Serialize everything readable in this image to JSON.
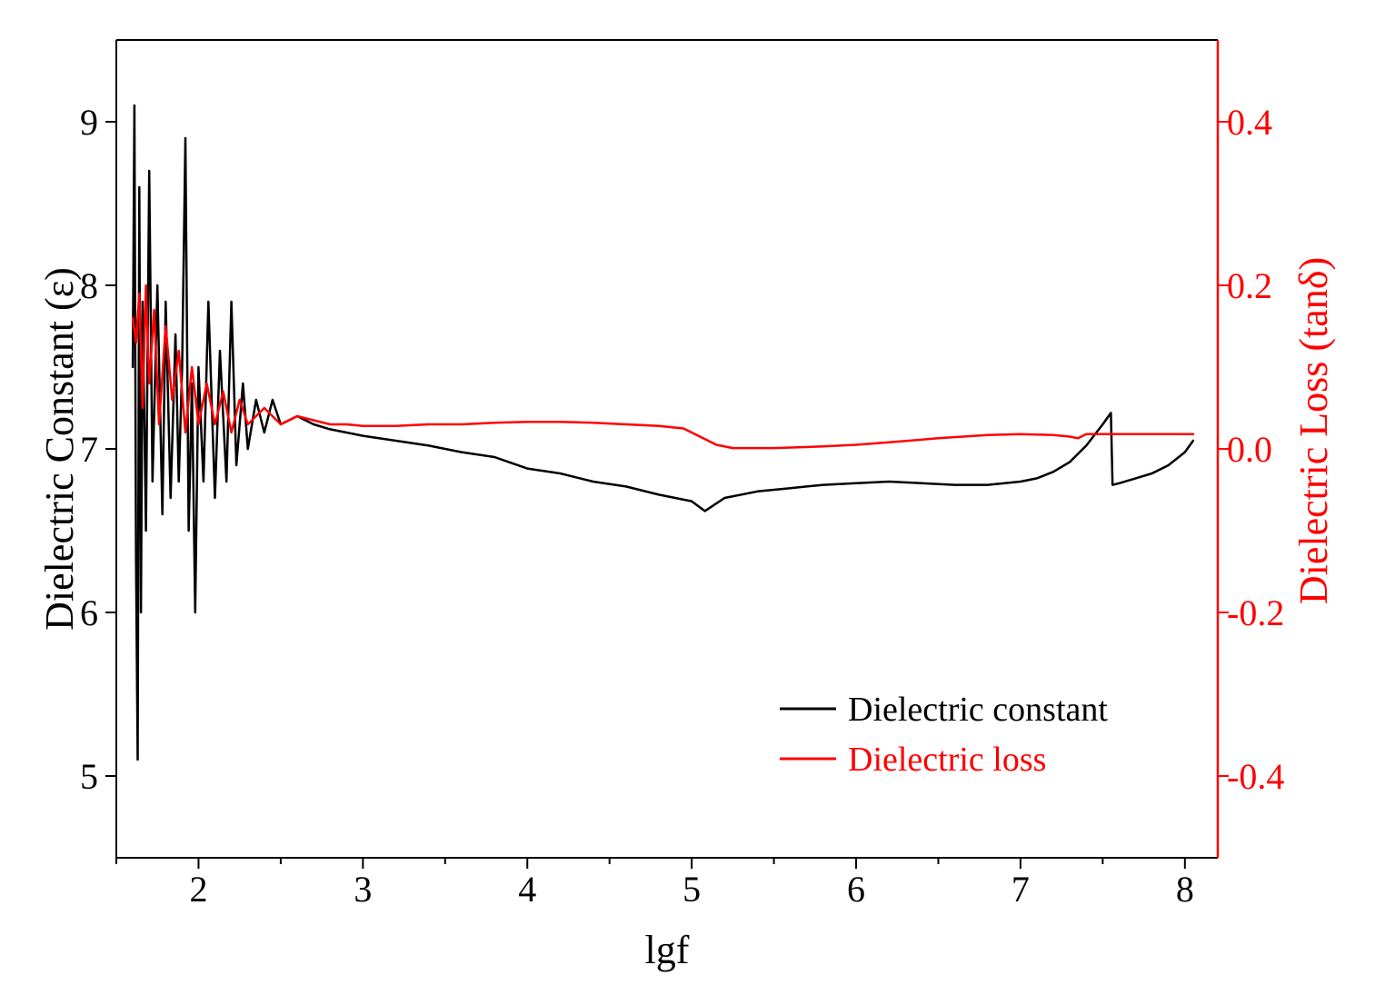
{
  "chart_data": {
    "type": "line",
    "xlabel": "lgf",
    "ylabel_left": "Dielectric Constant (ε)",
    "ylabel_right": "Dielectric Loss (tanδ)",
    "xlim": [
      1.5,
      8.2
    ],
    "ylim_left": [
      4.5,
      9.5
    ],
    "ylim_right": [
      -0.5,
      0.5
    ],
    "x_ticks": [
      2,
      3,
      4,
      5,
      6,
      7,
      8
    ],
    "x_tick_labels": [
      "2",
      "3",
      "4",
      "5",
      "6",
      "7",
      "8"
    ],
    "y_left_ticks": [
      5,
      6,
      7,
      8,
      9
    ],
    "y_left_tick_labels": [
      "5",
      "6",
      "7",
      "8",
      "9"
    ],
    "y_right_ticks": [
      -0.4,
      -0.2,
      0.0,
      0.2,
      0.4
    ],
    "y_right_tick_labels": [
      "-0.4",
      "-0.2",
      "0.0",
      "0.2",
      "0.4"
    ],
    "grid": false,
    "legend_position": "bottom-right",
    "series": [
      {
        "name": "Dielectric constant",
        "axis": "left",
        "color": "#000000",
        "x": [
          1.6,
          1.61,
          1.62,
          1.63,
          1.64,
          1.65,
          1.66,
          1.68,
          1.7,
          1.72,
          1.75,
          1.78,
          1.8,
          1.83,
          1.86,
          1.88,
          1.9,
          1.92,
          1.94,
          1.96,
          1.98,
          2.0,
          2.03,
          2.06,
          2.1,
          2.13,
          2.17,
          2.2,
          2.23,
          2.27,
          2.3,
          2.35,
          2.4,
          2.45,
          2.5,
          2.6,
          2.7,
          2.8,
          2.9,
          3.0,
          3.2,
          3.4,
          3.6,
          3.8,
          4.0,
          4.2,
          4.4,
          4.6,
          4.8,
          5.0,
          5.08,
          5.2,
          5.4,
          5.6,
          5.8,
          6.0,
          6.2,
          6.4,
          6.6,
          6.8,
          7.0,
          7.1,
          7.2,
          7.3,
          7.4,
          7.5,
          7.55,
          7.56,
          7.6,
          7.7,
          7.8,
          7.9,
          8.0,
          8.05
        ],
        "y": [
          7.5,
          9.1,
          6.3,
          5.1,
          8.6,
          6.0,
          7.9,
          6.5,
          8.7,
          6.8,
          8.0,
          6.6,
          7.9,
          6.7,
          7.7,
          6.8,
          7.5,
          8.9,
          6.5,
          7.4,
          6.0,
          7.5,
          6.8,
          7.9,
          6.7,
          7.6,
          6.8,
          7.9,
          6.9,
          7.4,
          7.0,
          7.3,
          7.1,
          7.3,
          7.15,
          7.2,
          7.15,
          7.12,
          7.1,
          7.08,
          7.05,
          7.02,
          6.98,
          6.95,
          6.88,
          6.85,
          6.8,
          6.77,
          6.72,
          6.68,
          6.62,
          6.7,
          6.74,
          6.76,
          6.78,
          6.79,
          6.8,
          6.79,
          6.78,
          6.78,
          6.8,
          6.82,
          6.86,
          6.92,
          7.02,
          7.15,
          7.22,
          6.78,
          6.79,
          6.82,
          6.85,
          6.9,
          6.98,
          7.05
        ]
      },
      {
        "name": "Dielectric loss",
        "axis": "right",
        "color": "#ff0000",
        "x": [
          1.6,
          1.62,
          1.64,
          1.66,
          1.68,
          1.7,
          1.73,
          1.76,
          1.8,
          1.84,
          1.88,
          1.92,
          1.96,
          2.0,
          2.05,
          2.1,
          2.15,
          2.2,
          2.25,
          2.3,
          2.4,
          2.5,
          2.6,
          2.7,
          2.8,
          2.9,
          3.0,
          3.2,
          3.4,
          3.6,
          3.8,
          4.0,
          4.2,
          4.4,
          4.6,
          4.8,
          4.95,
          5.05,
          5.15,
          5.25,
          5.5,
          5.8,
          6.0,
          6.2,
          6.5,
          6.8,
          7.0,
          7.2,
          7.3,
          7.35,
          7.4,
          7.6,
          7.8,
          8.0,
          8.05
        ],
        "y": [
          0.16,
          0.13,
          0.19,
          0.05,
          0.2,
          0.08,
          0.17,
          0.03,
          0.15,
          0.06,
          0.12,
          0.02,
          0.1,
          0.03,
          0.08,
          0.03,
          0.07,
          0.02,
          0.06,
          0.03,
          0.05,
          0.03,
          0.04,
          0.035,
          0.03,
          0.03,
          0.028,
          0.028,
          0.03,
          0.03,
          0.032,
          0.033,
          0.033,
          0.032,
          0.03,
          0.028,
          0.025,
          0.015,
          0.005,
          0.001,
          0.001,
          0.003,
          0.005,
          0.008,
          0.013,
          0.017,
          0.018,
          0.017,
          0.015,
          0.013,
          0.018,
          0.018,
          0.018,
          0.018,
          0.018
        ]
      }
    ]
  }
}
